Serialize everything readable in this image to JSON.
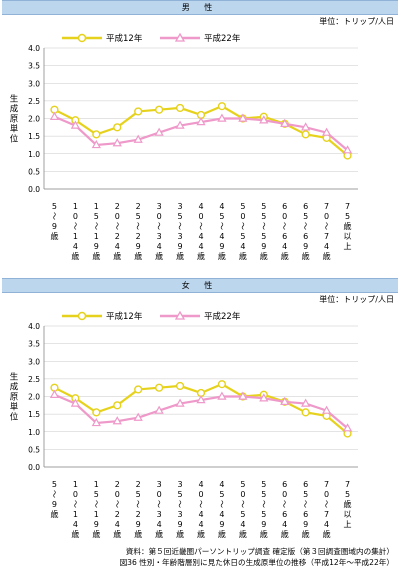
{
  "unit_label": "単位：トリップ/人日",
  "y_axis_label": "生成原単位",
  "legend": {
    "s1": "平成12年",
    "s2": "平成22年"
  },
  "colors": {
    "s1": "#e6d21c",
    "s2": "#ee99c9",
    "band": "#bcd6ee",
    "grid": "#c8c8c8"
  },
  "footer": {
    "source": "資料：第５回近畿圏パーソントリップ調査 確定版（第３回調査圏域内の集計）",
    "caption": "図36 性別・年齢階層別に見た休日の生成原単位の推移（平成12年〜平成22年）"
  },
  "chart_data": [
    {
      "type": "line",
      "title": "男 性",
      "ylabel": "生成原単位",
      "ylim": [
        0,
        4.0
      ],
      "yticks": [
        "0.0",
        "0.5",
        "1.0",
        "1.5",
        "2.0",
        "2.5",
        "3.0",
        "3.5",
        "4.0"
      ],
      "categories": [
        "5〜9歳",
        "10〜14歳",
        "15〜19歳",
        "20〜24歳",
        "25〜29歳",
        "30〜34歳",
        "35〜39歳",
        "40〜44歳",
        "45〜49歳",
        "50〜54歳",
        "55〜59歳",
        "60〜64歳",
        "65〜69歳",
        "70〜74歳",
        "75歳以上"
      ],
      "series": [
        {
          "name": "平成12年",
          "values": [
            2.25,
            1.95,
            1.55,
            1.75,
            2.2,
            2.25,
            2.3,
            2.1,
            2.35,
            2.0,
            2.05,
            1.85,
            1.55,
            1.45,
            0.95
          ]
        },
        {
          "name": "平成22年",
          "values": [
            2.05,
            1.8,
            1.25,
            1.3,
            1.4,
            1.6,
            1.8,
            1.9,
            2.0,
            2.0,
            1.95,
            1.85,
            1.75,
            1.6,
            1.1
          ]
        }
      ]
    },
    {
      "type": "line",
      "title": "女 性",
      "ylabel": "生成原単位",
      "ylim": [
        0,
        4.0
      ],
      "yticks": [
        "0.0",
        "0.5",
        "1.0",
        "1.5",
        "2.0",
        "2.5",
        "3.0",
        "3.5",
        "4.0"
      ],
      "categories": [
        "5〜9歳",
        "10〜14歳",
        "15〜19歳",
        "20〜24歳",
        "25〜29歳",
        "30〜34歳",
        "35〜39歳",
        "40〜44歳",
        "45〜49歳",
        "50〜54歳",
        "55〜59歳",
        "60〜64歳",
        "65〜69歳",
        "70〜74歳",
        "75歳以上"
      ],
      "series": [
        {
          "name": "平成12年",
          "values": [
            2.25,
            1.95,
            1.55,
            1.75,
            2.2,
            2.25,
            2.3,
            2.1,
            2.35,
            2.0,
            2.05,
            1.85,
            1.55,
            1.45,
            0.95
          ]
        },
        {
          "name": "平成22年",
          "values": [
            2.05,
            1.8,
            1.25,
            1.3,
            1.4,
            1.6,
            1.8,
            1.9,
            2.0,
            2.0,
            1.95,
            1.85,
            1.8,
            1.6,
            1.1
          ]
        }
      ]
    }
  ]
}
